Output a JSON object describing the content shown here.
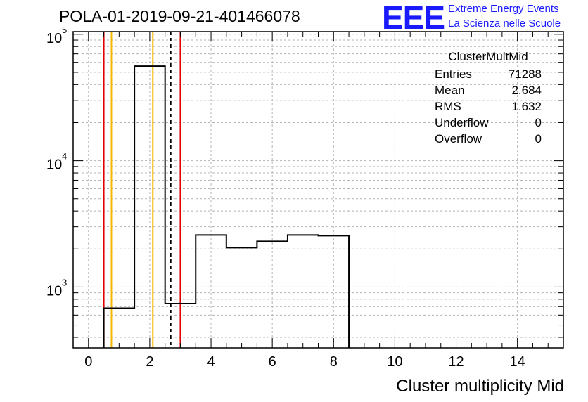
{
  "title": "POLA-01-2019-09-21-401466078",
  "logo": {
    "mark": "EEE",
    "line1": "Extreme Energy Events",
    "line2": "La Scienza nelle Scuole",
    "color": "#1a1aff"
  },
  "stats": {
    "name": "ClusterMultMid",
    "rows": [
      {
        "label": "Entries",
        "value": "71288"
      },
      {
        "label": "Mean",
        "value": "2.684"
      },
      {
        "label": "RMS",
        "value": "1.632"
      },
      {
        "label": "Underflow",
        "value": "0"
      },
      {
        "label": "Overflow",
        "value": "0"
      }
    ]
  },
  "chart_data": {
    "type": "histogram",
    "xlabel": "Cluster multiplicity Mid",
    "ylabel": "",
    "xlim": [
      -0.5,
      15.5
    ],
    "ylim": [
      330,
      105000
    ],
    "yscale": "log",
    "grid": true,
    "xticks": [
      0,
      2,
      4,
      6,
      8,
      10,
      12,
      14
    ],
    "yticks": [
      {
        "value": 1000,
        "base": "10",
        "exp": "3"
      },
      {
        "value": 10000,
        "base": "10",
        "exp": "4"
      },
      {
        "value": 100000,
        "base": "10",
        "exp": "5"
      }
    ],
    "bins": [
      {
        "low": 0.5,
        "high": 1.5,
        "count": 680
      },
      {
        "low": 1.5,
        "high": 2.5,
        "count": 56000
      },
      {
        "low": 2.5,
        "high": 3.5,
        "count": 740
      },
      {
        "low": 3.5,
        "high": 4.5,
        "count": 2580
      },
      {
        "low": 4.5,
        "high": 5.5,
        "count": 2050
      },
      {
        "low": 5.5,
        "high": 6.5,
        "count": 2300
      },
      {
        "low": 6.5,
        "high": 7.5,
        "count": 2580
      },
      {
        "low": 7.5,
        "high": 8.5,
        "count": 2550
      }
    ],
    "vlines": [
      {
        "x": 0.5,
        "color": "#e00000",
        "style": "solid"
      },
      {
        "x": 0.75,
        "color": "#f5b800",
        "style": "solid"
      },
      {
        "x": 2.1,
        "color": "#f5b800",
        "style": "solid"
      },
      {
        "x": 2.684,
        "color": "#000000",
        "style": "dashed"
      },
      {
        "x": 3.0,
        "color": "#e00000",
        "style": "solid"
      }
    ]
  }
}
